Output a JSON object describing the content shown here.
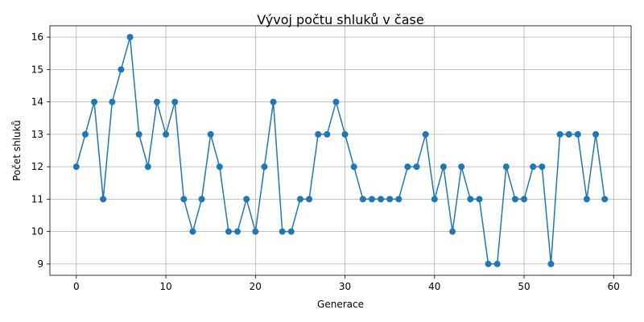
{
  "chart_data": {
    "type": "line",
    "title": "Vývoj počtu shluků v čase",
    "xlabel": "Generace",
    "ylabel": "Počet shluků",
    "xlim": [
      -2.95,
      61.95
    ],
    "ylim": [
      8.65,
      16.35
    ],
    "xticks": [
      0,
      10,
      20,
      30,
      40,
      50,
      60
    ],
    "yticks": [
      9,
      10,
      11,
      12,
      13,
      14,
      15,
      16
    ],
    "grid": true,
    "color": "#1f77b4",
    "marker": "circle",
    "x": [
      0,
      1,
      2,
      3,
      4,
      5,
      6,
      7,
      8,
      9,
      10,
      11,
      12,
      13,
      14,
      15,
      16,
      17,
      18,
      19,
      20,
      21,
      22,
      23,
      24,
      25,
      26,
      27,
      28,
      29,
      30,
      31,
      32,
      33,
      34,
      35,
      36,
      37,
      38,
      39,
      40,
      41,
      42,
      43,
      44,
      45,
      46,
      47,
      48,
      49,
      50,
      51,
      52,
      53,
      54,
      55,
      56,
      57,
      58,
      59
    ],
    "values": [
      12,
      13,
      14,
      11,
      14,
      15,
      16,
      13,
      12,
      14,
      13,
      14,
      11,
      10,
      11,
      13,
      12,
      10,
      10,
      11,
      10,
      12,
      14,
      10,
      10,
      11,
      11,
      13,
      13,
      14,
      13,
      12,
      11,
      11,
      11,
      11,
      11,
      12,
      12,
      13,
      11,
      12,
      10,
      12,
      11,
      11,
      9,
      9,
      12,
      11,
      11,
      12,
      12,
      9,
      13,
      13,
      13,
      11,
      13,
      11
    ]
  }
}
